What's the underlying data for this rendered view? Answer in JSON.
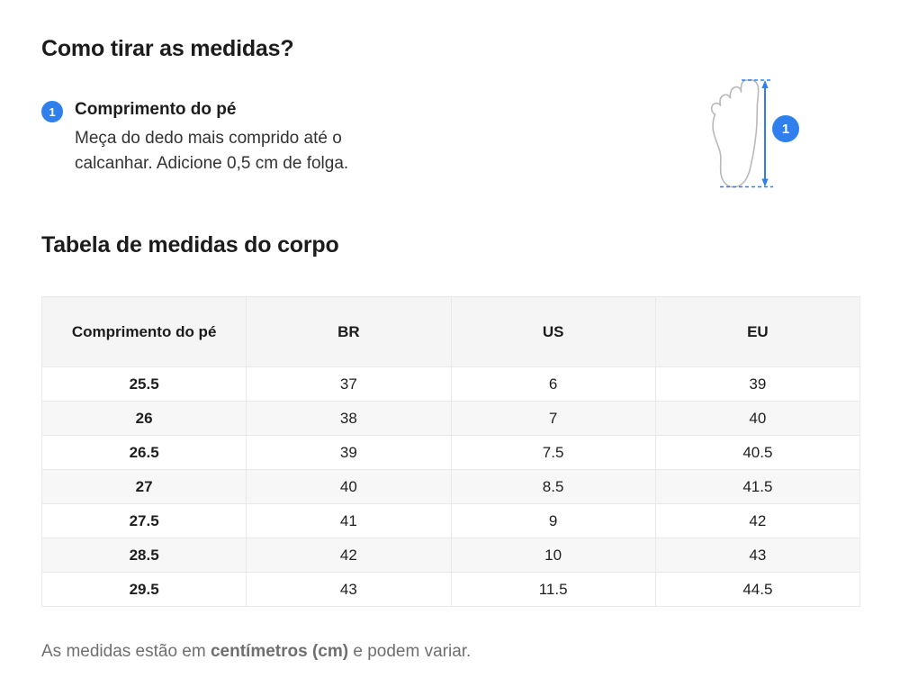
{
  "colors": {
    "accent_blue": "#2f80ed",
    "table_header_bg": "#f5f5f5",
    "row_alt_bg": "#f7f7f7",
    "table_border": "#e9e9e9",
    "heading_text": "#1c1c1c",
    "muted_text": "#6f6f6f",
    "foot_outline": "#b9b9b9"
  },
  "sections": {
    "how_to": {
      "title": "Como tirar as medidas?",
      "step": {
        "number": "1",
        "title": "Comprimento do pé",
        "description": "Meça do dedo mais comprido até o calcanhar. Adicione 0,5 cm de folga."
      }
    },
    "table": {
      "title": "Tabela de medidas do corpo",
      "headers": [
        "Comprimento do pé",
        "BR",
        "US",
        "EU"
      ],
      "rows": [
        [
          "25.5",
          "37",
          "6",
          "39"
        ],
        [
          "26",
          "38",
          "7",
          "40"
        ],
        [
          "26.5",
          "39",
          "7.5",
          "40.5"
        ],
        [
          "27",
          "40",
          "8.5",
          "41.5"
        ],
        [
          "27.5",
          "41",
          "9",
          "42"
        ],
        [
          "28.5",
          "42",
          "10",
          "43"
        ],
        [
          "29.5",
          "43",
          "11.5",
          "44.5"
        ]
      ]
    }
  },
  "diagram": {
    "icon": "foot-outline-icon",
    "badge": "1"
  },
  "footnote": {
    "prefix": "As medidas estão em ",
    "bold": "centímetros (cm)",
    "suffix": " e podem variar."
  }
}
